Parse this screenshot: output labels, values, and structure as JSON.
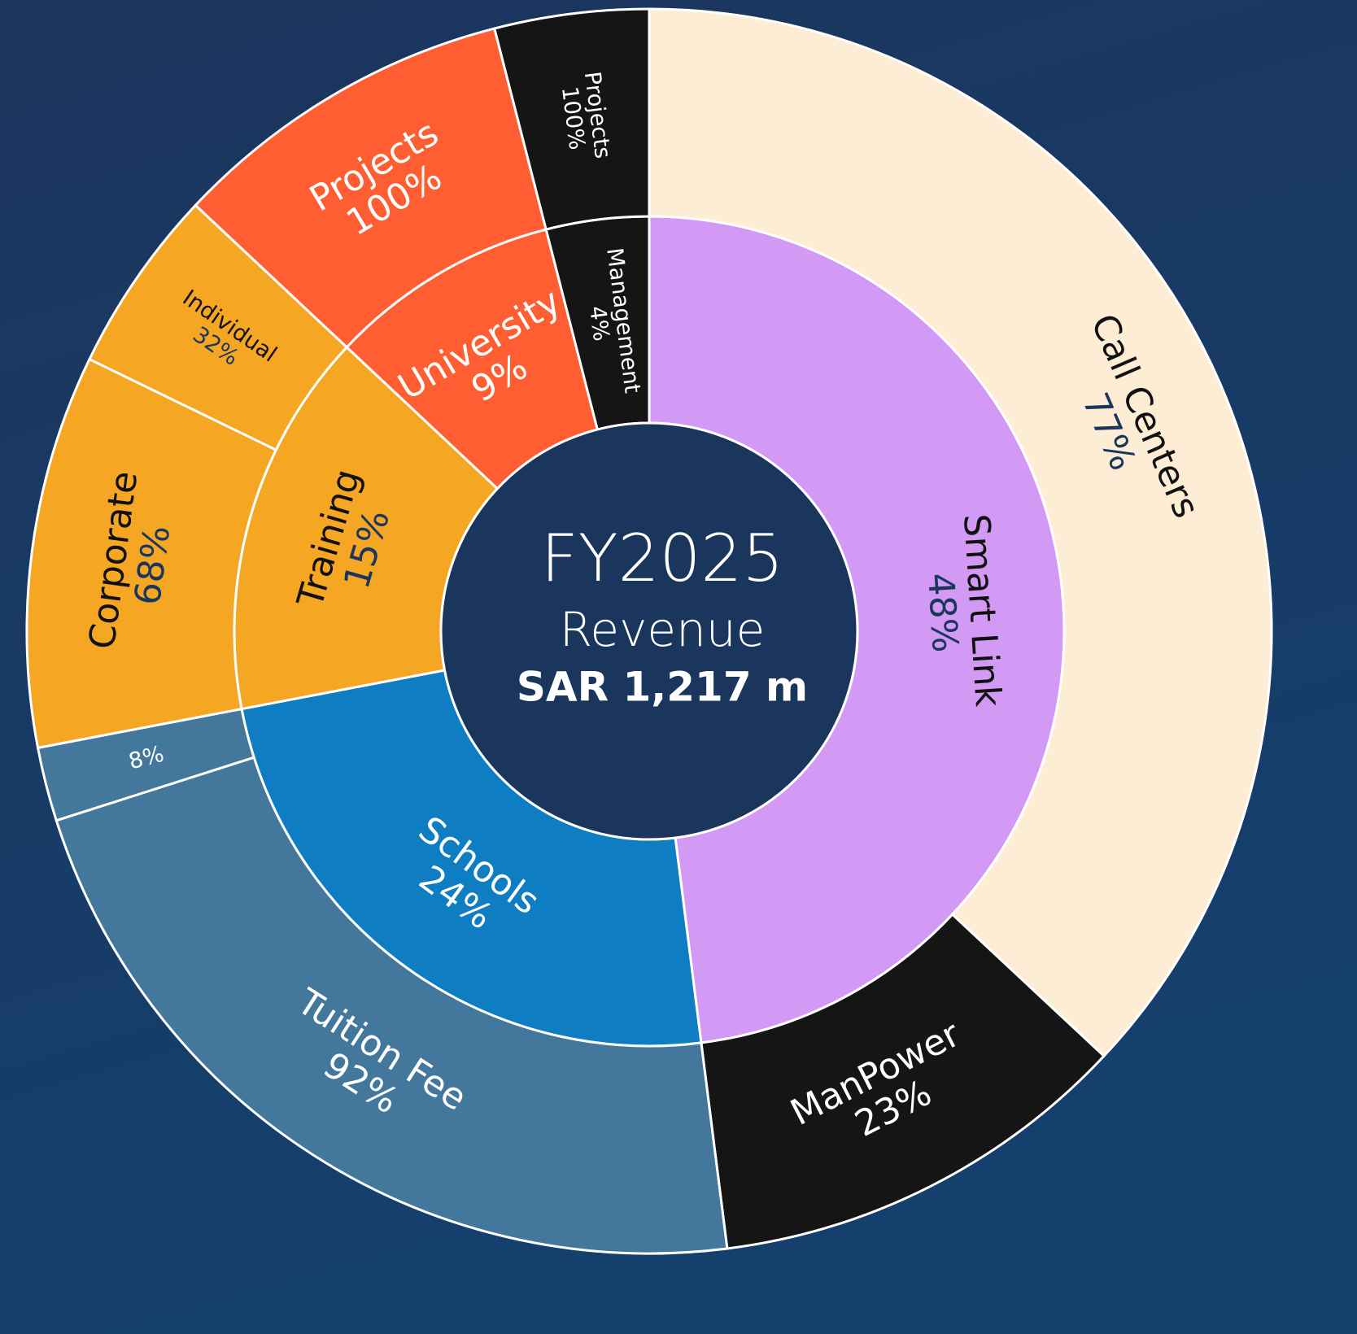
{
  "chart_data": {
    "type": "sunburst",
    "title": "FY2025",
    "subtitle": "Revenue",
    "total_label": "SAR 1,217 m",
    "categories": [
      "Smart Link",
      "Schools",
      "Training",
      "University",
      "Management"
    ],
    "values": [
      48,
      24,
      15,
      9,
      4
    ],
    "value_labels": [
      "48%",
      "24%",
      "15%",
      "9%",
      "4%"
    ],
    "colors": [
      "#d39af5",
      "#0f7dc2",
      "#f5a623",
      "#ff5e33",
      "#151515"
    ],
    "children": [
      {
        "categories": [
          "Call Centers",
          "ManPower"
        ],
        "values": [
          77,
          23
        ],
        "value_labels": [
          "77%",
          "23%"
        ],
        "colors": [
          "#fdedd5",
          "#151515"
        ]
      },
      {
        "categories": [
          "Tuition Fee",
          null
        ],
        "values": [
          92,
          8
        ],
        "value_labels": [
          "92%",
          "8%"
        ],
        "colors": [
          "#43789c",
          "#43789c"
        ]
      },
      {
        "categories": [
          "Corporate",
          "Individual"
        ],
        "values": [
          68,
          32
        ],
        "value_labels": [
          "68%",
          "32%"
        ],
        "colors": [
          "#f5a623",
          "#f5a623"
        ]
      },
      {
        "categories": [
          "Projects"
        ],
        "values": [
          100
        ],
        "value_labels": [
          "100%"
        ],
        "colors": [
          "#ff5e33"
        ]
      },
      {
        "categories": [
          "Projects"
        ],
        "values": [
          100
        ],
        "value_labels": [
          "100%"
        ],
        "colors": [
          "#151515"
        ]
      }
    ]
  }
}
